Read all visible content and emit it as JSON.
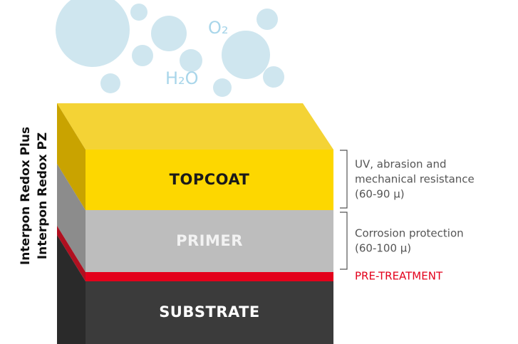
{
  "gases": [
    "O₂",
    "H₂O"
  ],
  "products": [
    "Interpon Redox Plus",
    "Interpon Redox PZ"
  ],
  "layers": [
    {
      "label": "TOPCOAT",
      "note": [
        "UV, abrasion and",
        "mechanical resistance",
        "(60-90 µ)"
      ]
    },
    {
      "label": "PRIMER",
      "note": [
        "Corrosion protection",
        "(60-100 µ)"
      ]
    },
    {
      "label": "PRE-TREATMENT"
    },
    {
      "label": "SUBSTRATE"
    }
  ]
}
